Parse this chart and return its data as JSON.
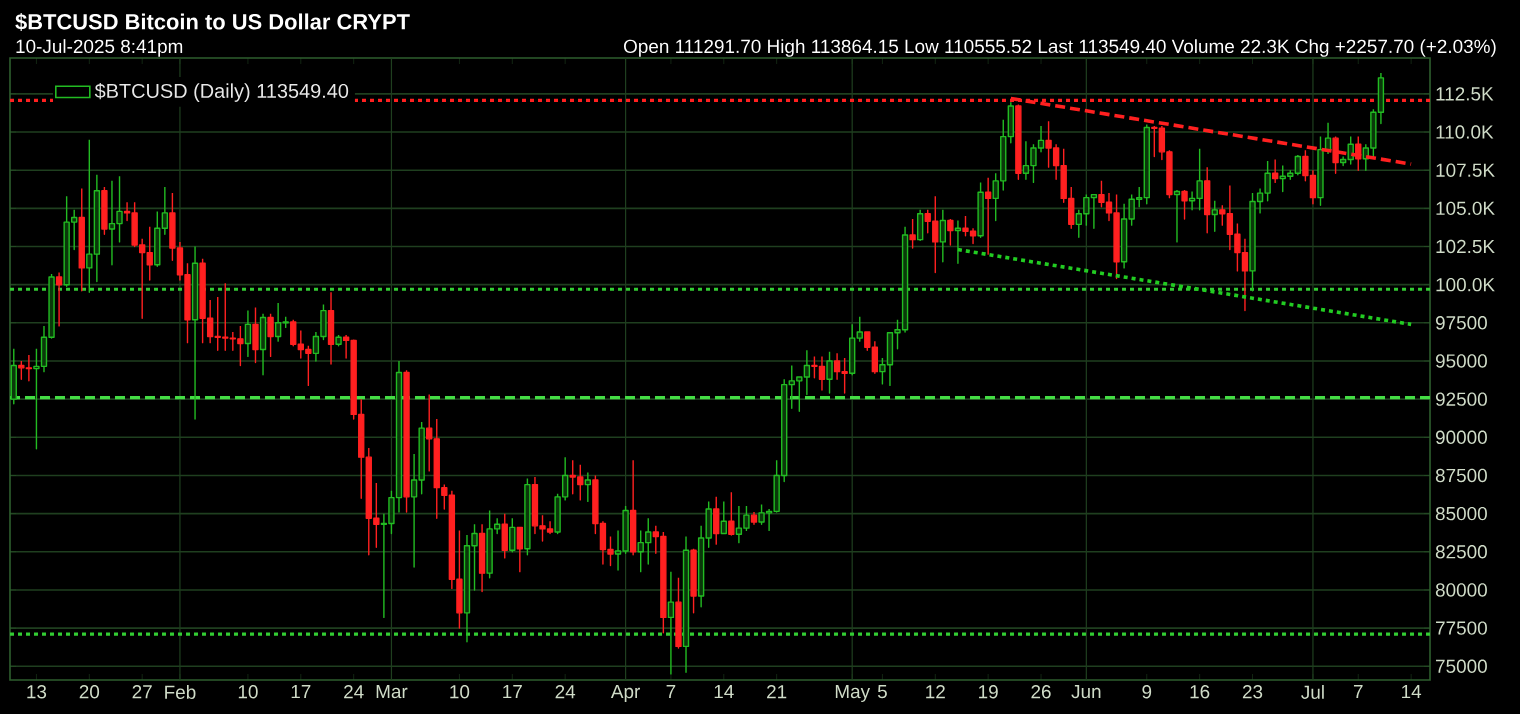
{
  "chart_data": {
    "type": "candlestick",
    "title": "$BTCUSD Bitcoin to US Dollar CRYPT",
    "subtitle": "10-Jul-2025 8:41pm",
    "annotations": [
      "Open 111291.70 High 113864.15 Low 110555.52 Last 113549.40 Volume 22.3K Chg +2257.70 (+2.03%)"
    ],
    "xlim": [
      "2025-01-09T12:00",
      "2025-07-16T12:00"
    ],
    "xticks": [
      {
        "value": "2025-01-13",
        "label": "13"
      },
      {
        "value": "2025-01-20",
        "label": "20"
      },
      {
        "value": "2025-01-27",
        "label": "27"
      },
      {
        "value": "2025-02-01",
        "label": "Feb"
      },
      {
        "value": "2025-02-10",
        "label": "10"
      },
      {
        "value": "2025-02-17",
        "label": "17"
      },
      {
        "value": "2025-02-24",
        "label": "24"
      },
      {
        "value": "2025-03-01",
        "label": "Mar"
      },
      {
        "value": "2025-03-10",
        "label": "10"
      },
      {
        "value": "2025-03-17",
        "label": "17"
      },
      {
        "value": "2025-03-24",
        "label": "24"
      },
      {
        "value": "2025-04-01",
        "label": "Apr"
      },
      {
        "value": "2025-04-07",
        "label": "7"
      },
      {
        "value": "2025-04-14",
        "label": "14"
      },
      {
        "value": "2025-04-21",
        "label": "21"
      },
      {
        "value": "2025-05-01",
        "label": "May"
      },
      {
        "value": "2025-05-05",
        "label": "5"
      },
      {
        "value": "2025-05-12",
        "label": "12"
      },
      {
        "value": "2025-05-19",
        "label": "19"
      },
      {
        "value": "2025-05-26",
        "label": "26"
      },
      {
        "value": "2025-06-01",
        "label": "Jun"
      },
      {
        "value": "2025-06-09",
        "label": "9"
      },
      {
        "value": "2025-06-16",
        "label": "16"
      },
      {
        "value": "2025-06-23",
        "label": "23"
      },
      {
        "value": "2025-07-01",
        "label": "Jul"
      },
      {
        "value": "2025-07-07",
        "label": "7"
      },
      {
        "value": "2025-07-14",
        "label": "14"
      }
    ],
    "ylim": [
      74100,
      114850
    ],
    "yticks": [
      75000,
      77500,
      80000,
      82500,
      85000,
      87500,
      90000,
      92500,
      95000,
      97500,
      {
        "value": 100000,
        "label": "100.0K"
      },
      {
        "value": 102500,
        "label": "102.5K"
      },
      {
        "value": 105000,
        "label": "105.0K"
      },
      {
        "value": 107500,
        "label": "107.5K"
      },
      {
        "value": 110000,
        "label": "110.0K"
      },
      {
        "value": 112500,
        "label": "112.5K"
      }
    ],
    "grid": "y",
    "legend": "top left",
    "ref_lines": [
      {
        "axis": "x",
        "value": "2025-02-01",
        "color": "#1f3f1f"
      },
      {
        "axis": "x",
        "value": "2025-03-01",
        "color": "#1f3f1f"
      },
      {
        "axis": "x",
        "value": "2025-04-01",
        "color": "#1f3f1f"
      },
      {
        "axis": "x",
        "value": "2025-05-01",
        "color": "#1f3f1f"
      },
      {
        "axis": "x",
        "value": "2025-06-01",
        "color": "#1f3f1f"
      },
      {
        "axis": "x",
        "value": "2025-07-01",
        "color": "#1f3f1f"
      },
      {
        "axis": "y",
        "value": 112070,
        "color": "#ff2020",
        "line_style": "dotted"
      },
      {
        "axis": "y",
        "value": 99700,
        "color": "#33cc33",
        "line_style": "dotted"
      },
      {
        "axis": "y",
        "value": 92600,
        "color": "#44dd44",
        "line_style": "dashed"
      },
      {
        "axis": "y",
        "value": 77100,
        "color": "#33cc33",
        "line_style": "dotted"
      }
    ],
    "series": [
      {
        "name": "$BTCUSD (Daily) 113549.40",
        "x": [
          "2025-01-10",
          "2025-01-11",
          "2025-01-12",
          "2025-01-13",
          "2025-01-14",
          "2025-01-15",
          "2025-01-16",
          "2025-01-17",
          "2025-01-18",
          "2025-01-19",
          "2025-01-20",
          "2025-01-21",
          "2025-01-22",
          "2025-01-23",
          "2025-01-24",
          "2025-01-25",
          "2025-01-26",
          "2025-01-27",
          "2025-01-28",
          "2025-01-29",
          "2025-01-30",
          "2025-01-31",
          "2025-02-01",
          "2025-02-02",
          "2025-02-03",
          "2025-02-04",
          "2025-02-05",
          "2025-02-06",
          "2025-02-07",
          "2025-02-08",
          "2025-02-09",
          "2025-02-10",
          "2025-02-11",
          "2025-02-12",
          "2025-02-13",
          "2025-02-14",
          "2025-02-15",
          "2025-02-16",
          "2025-02-17",
          "2025-02-18",
          "2025-02-19",
          "2025-02-20",
          "2025-02-21",
          "2025-02-22",
          "2025-02-23",
          "2025-02-24",
          "2025-02-25",
          "2025-02-26",
          "2025-02-27",
          "2025-02-28",
          "2025-03-01",
          "2025-03-02",
          "2025-03-03",
          "2025-03-04",
          "2025-03-05",
          "2025-03-06",
          "2025-03-07",
          "2025-03-08",
          "2025-03-09",
          "2025-03-10",
          "2025-03-11",
          "2025-03-12",
          "2025-03-13",
          "2025-03-14",
          "2025-03-15",
          "2025-03-16",
          "2025-03-17",
          "2025-03-18",
          "2025-03-19",
          "2025-03-20",
          "2025-03-21",
          "2025-03-22",
          "2025-03-23",
          "2025-03-24",
          "2025-03-25",
          "2025-03-26",
          "2025-03-27",
          "2025-03-28",
          "2025-03-29",
          "2025-03-30",
          "2025-03-31",
          "2025-04-01",
          "2025-04-02",
          "2025-04-03",
          "2025-04-04",
          "2025-04-05",
          "2025-04-06",
          "2025-04-07",
          "2025-04-08",
          "2025-04-09",
          "2025-04-10",
          "2025-04-11",
          "2025-04-12",
          "2025-04-13",
          "2025-04-14",
          "2025-04-15",
          "2025-04-16",
          "2025-04-17",
          "2025-04-18",
          "2025-04-19",
          "2025-04-20",
          "2025-04-21",
          "2025-04-22",
          "2025-04-23",
          "2025-04-24",
          "2025-04-25",
          "2025-04-26",
          "2025-04-27",
          "2025-04-28",
          "2025-04-29",
          "2025-04-30",
          "2025-05-01",
          "2025-05-02",
          "2025-05-03",
          "2025-05-04",
          "2025-05-05",
          "2025-05-06",
          "2025-05-07",
          "2025-05-08",
          "2025-05-09",
          "2025-05-10",
          "2025-05-11",
          "2025-05-12",
          "2025-05-13",
          "2025-05-14",
          "2025-05-15",
          "2025-05-16",
          "2025-05-17",
          "2025-05-18",
          "2025-05-19",
          "2025-05-20",
          "2025-05-21",
          "2025-05-22",
          "2025-05-23",
          "2025-05-24",
          "2025-05-25",
          "2025-05-26",
          "2025-05-27",
          "2025-05-28",
          "2025-05-29",
          "2025-05-30",
          "2025-05-31",
          "2025-06-01",
          "2025-06-02",
          "2025-06-03",
          "2025-06-04",
          "2025-06-05",
          "2025-06-06",
          "2025-06-07",
          "2025-06-08",
          "2025-06-09",
          "2025-06-10",
          "2025-06-11",
          "2025-06-12",
          "2025-06-13",
          "2025-06-14",
          "2025-06-15",
          "2025-06-16",
          "2025-06-17",
          "2025-06-18",
          "2025-06-19",
          "2025-06-20",
          "2025-06-21",
          "2025-06-22",
          "2025-06-23",
          "2025-06-24",
          "2025-06-25",
          "2025-06-26",
          "2025-06-27",
          "2025-06-28",
          "2025-06-29",
          "2025-06-30",
          "2025-07-01",
          "2025-07-02",
          "2025-07-03",
          "2025-07-04",
          "2025-07-05",
          "2025-07-06",
          "2025-07-07",
          "2025-07-08",
          "2025-07-09",
          "2025-07-10"
        ],
        "ohlc": [
          [
            92500,
            95800,
            92200,
            94700
          ],
          [
            94700,
            95000,
            93800,
            94550
          ],
          [
            94550,
            95400,
            93700,
            94500
          ],
          [
            94500,
            95800,
            89250,
            94650
          ],
          [
            94650,
            97300,
            94300,
            96550
          ],
          [
            96550,
            100700,
            96500,
            100500
          ],
          [
            100500,
            100800,
            97300,
            99990
          ],
          [
            99990,
            105800,
            99900,
            104100
          ],
          [
            104100,
            104900,
            102300,
            104400
          ],
          [
            104400,
            106300,
            99600,
            101100
          ],
          [
            101100,
            109500,
            99500,
            102000
          ],
          [
            102000,
            107200,
            100200,
            106150
          ],
          [
            106150,
            106400,
            103300,
            103650
          ],
          [
            103650,
            106800,
            101300,
            104000
          ],
          [
            104000,
            107100,
            102800,
            104800
          ],
          [
            104800,
            105400,
            104200,
            104700
          ],
          [
            104700,
            105400,
            102500,
            102600
          ],
          [
            102600,
            103000,
            97800,
            102100
          ],
          [
            102100,
            103800,
            100300,
            101300
          ],
          [
            101300,
            104800,
            101200,
            103700
          ],
          [
            103700,
            106400,
            103300,
            104700
          ],
          [
            104700,
            106000,
            101600,
            102400
          ],
          [
            102400,
            102800,
            100300,
            100650
          ],
          [
            100650,
            101400,
            96200,
            97700
          ],
          [
            97700,
            102500,
            91200,
            101400
          ],
          [
            101400,
            101700,
            96200,
            97800
          ],
          [
            97800,
            99000,
            96200,
            96600
          ],
          [
            96600,
            99200,
            95700,
            96550
          ],
          [
            96550,
            100100,
            95700,
            96500
          ],
          [
            96500,
            96900,
            95700,
            96450
          ],
          [
            96450,
            97300,
            94700,
            96150
          ],
          [
            96150,
            98300,
            95300,
            97400
          ],
          [
            97400,
            98500,
            94900,
            95750
          ],
          [
            95750,
            98100,
            94100,
            97850
          ],
          [
            97850,
            98100,
            95300,
            96600
          ],
          [
            96600,
            98800,
            96300,
            97500
          ],
          [
            97500,
            97900,
            97200,
            97550
          ],
          [
            97550,
            97700,
            96000,
            96100
          ],
          [
            96100,
            97000,
            95200,
            95750
          ],
          [
            95750,
            96000,
            93400,
            95500
          ],
          [
            95500,
            96900,
            95000,
            96600
          ],
          [
            96600,
            98700,
            96400,
            98300
          ],
          [
            98300,
            99500,
            94800,
            96100
          ],
          [
            96100,
            96700,
            96000,
            96550
          ],
          [
            96550,
            96700,
            95200,
            96350
          ],
          [
            96350,
            96400,
            91200,
            91500
          ],
          [
            91500,
            92500,
            86000,
            88700
          ],
          [
            88700,
            89300,
            82300,
            84700
          ],
          [
            84700,
            87000,
            82800,
            84300
          ],
          [
            84300,
            85000,
            78200,
            84350
          ],
          [
            84350,
            86500,
            83700,
            86050
          ],
          [
            86050,
            95000,
            85100,
            94250
          ],
          [
            94250,
            94400,
            85100,
            86100
          ],
          [
            86100,
            88900,
            81500,
            87200
          ],
          [
            87200,
            91000,
            86300,
            90600
          ],
          [
            90600,
            92800,
            87800,
            89900
          ],
          [
            89900,
            91200,
            84700,
            86700
          ],
          [
            86700,
            86900,
            85300,
            86200
          ],
          [
            86200,
            86500,
            80100,
            80700
          ],
          [
            80700,
            83900,
            77500,
            78500
          ],
          [
            78500,
            83600,
            76600,
            82900
          ],
          [
            82900,
            84300,
            80000,
            83700
          ],
          [
            83700,
            84300,
            79900,
            81100
          ],
          [
            81100,
            85200,
            80800,
            84000
          ],
          [
            84000,
            84700,
            83700,
            84300
          ],
          [
            84300,
            85000,
            82100,
            82600
          ],
          [
            82600,
            84700,
            82500,
            84100
          ],
          [
            84100,
            84100,
            81200,
            82700
          ],
          [
            82700,
            87300,
            82300,
            86900
          ],
          [
            86900,
            87400,
            83700,
            84200
          ],
          [
            84200,
            84900,
            83200,
            84000
          ],
          [
            84000,
            84500,
            83700,
            83800
          ],
          [
            83800,
            86300,
            83700,
            86100
          ],
          [
            86100,
            88700,
            85900,
            87500
          ],
          [
            87500,
            88500,
            86300,
            87400
          ],
          [
            87400,
            88200,
            85900,
            86900
          ],
          [
            86900,
            87700,
            85800,
            87200
          ],
          [
            87200,
            87500,
            83700,
            84350
          ],
          [
            84350,
            84500,
            81700,
            82650
          ],
          [
            82650,
            83500,
            81600,
            82350
          ],
          [
            82350,
            83900,
            81300,
            82550
          ],
          [
            82550,
            85500,
            82400,
            85200
          ],
          [
            85200,
            88500,
            82300,
            82500
          ],
          [
            82500,
            83900,
            81200,
            83100
          ],
          [
            83100,
            84700,
            81700,
            83800
          ],
          [
            83800,
            84200,
            82400,
            83500
          ],
          [
            83500,
            83800,
            77200,
            78200
          ],
          [
            78200,
            81200,
            74500,
            79200
          ],
          [
            79200,
            80800,
            76200,
            76300
          ],
          [
            76300,
            83500,
            74600,
            82600
          ],
          [
            82600,
            82700,
            78500,
            79600
          ],
          [
            79600,
            84200,
            78900,
            83400
          ],
          [
            83400,
            85800,
            82800,
            85300
          ],
          [
            85300,
            86100,
            83000,
            83700
          ],
          [
            83700,
            85800,
            83700,
            84500
          ],
          [
            84500,
            86400,
            83600,
            83650
          ],
          [
            83650,
            85500,
            83100,
            84050
          ],
          [
            84050,
            85500,
            83900,
            84900
          ],
          [
            84900,
            85100,
            84300,
            84450
          ],
          [
            84450,
            85600,
            84300,
            85050
          ],
          [
            85050,
            85300,
            83900,
            85150
          ],
          [
            85150,
            88500,
            85100,
            87500
          ],
          [
            87500,
            93800,
            87100,
            93450
          ],
          [
            93450,
            94700,
            91900,
            93700
          ],
          [
            93700,
            94000,
            91700,
            93950
          ],
          [
            93950,
            95700,
            92800,
            94700
          ],
          [
            94700,
            95300,
            93900,
            94650
          ],
          [
            94650,
            95300,
            93100,
            93800
          ],
          [
            93800,
            95600,
            92900,
            95000
          ],
          [
            95000,
            95500,
            93800,
            94300
          ],
          [
            94300,
            95200,
            92900,
            94200
          ],
          [
            94200,
            97400,
            94100,
            96500
          ],
          [
            96500,
            97900,
            96300,
            96900
          ],
          [
            96900,
            96900,
            95700,
            95900
          ],
          [
            95900,
            96300,
            94200,
            94300
          ],
          [
            94300,
            95200,
            93500,
            94750
          ],
          [
            94750,
            96900,
            93400,
            96850
          ],
          [
            96850,
            97700,
            95800,
            97050
          ],
          [
            97050,
            103800,
            96900,
            103250
          ],
          [
            103250,
            104300,
            102400,
            102950
          ],
          [
            102950,
            104900,
            102900,
            104650
          ],
          [
            104650,
            104900,
            103400,
            104150
          ],
          [
            104150,
            105800,
            100800,
            102800
          ],
          [
            102800,
            104900,
            101500,
            104200
          ],
          [
            104200,
            104300,
            102600,
            103550
          ],
          [
            103550,
            104200,
            101400,
            103700
          ],
          [
            103700,
            104500,
            103200,
            103500
          ],
          [
            103500,
            103700,
            102700,
            103200
          ],
          [
            103200,
            106700,
            103100,
            106050
          ],
          [
            106050,
            107000,
            102000,
            105650
          ],
          [
            105650,
            107300,
            104200,
            106800
          ],
          [
            106800,
            110800,
            106200,
            109700
          ],
          [
            109700,
            111950,
            109300,
            111700
          ],
          [
            111700,
            111800,
            106900,
            107300
          ],
          [
            107300,
            109400,
            106900,
            107800
          ],
          [
            107800,
            109200,
            106700,
            108950
          ],
          [
            108950,
            110400,
            108700,
            109450
          ],
          [
            109450,
            110700,
            107700,
            108950
          ],
          [
            108950,
            109200,
            106900,
            107800
          ],
          [
            107800,
            108900,
            105400,
            105650
          ],
          [
            105650,
            106400,
            103700,
            103950
          ],
          [
            103950,
            104900,
            103100,
            104650
          ],
          [
            104650,
            105900,
            103900,
            105700
          ],
          [
            105700,
            105900,
            103700,
            105900
          ],
          [
            105900,
            106800,
            105100,
            105400
          ],
          [
            105400,
            106000,
            104200,
            104700
          ],
          [
            104700,
            105900,
            100400,
            101500
          ],
          [
            101500,
            105300,
            101100,
            104300
          ],
          [
            104300,
            105900,
            103900,
            105600
          ],
          [
            105600,
            106400,
            105100,
            105700
          ],
          [
            105700,
            110500,
            105300,
            110300
          ],
          [
            110300,
            110400,
            108400,
            110250
          ],
          [
            110250,
            110400,
            108200,
            108700
          ],
          [
            108700,
            108800,
            105700,
            105900
          ],
          [
            105900,
            106200,
            102800,
            106100
          ],
          [
            106100,
            106200,
            104300,
            105500
          ],
          [
            105500,
            106100,
            104900,
            105650
          ],
          [
            105650,
            108900,
            104900,
            106800
          ],
          [
            106800,
            107700,
            103400,
            104600
          ],
          [
            104600,
            105500,
            103500,
            104900
          ],
          [
            104900,
            105200,
            103900,
            104650
          ],
          [
            104650,
            106500,
            102300,
            103300
          ],
          [
            103300,
            104000,
            100900,
            102100
          ],
          [
            102100,
            103000,
            98300,
            100900
          ],
          [
            100900,
            106000,
            99600,
            105450
          ],
          [
            105450,
            106300,
            104700,
            106000
          ],
          [
            106000,
            108100,
            105500,
            107300
          ],
          [
            107300,
            108200,
            106700,
            106950
          ],
          [
            106950,
            107800,
            106100,
            107100
          ],
          [
            107100,
            107500,
            106900,
            107300
          ],
          [
            107300,
            108500,
            107200,
            108400
          ],
          [
            108400,
            108800,
            106800,
            107150
          ],
          [
            107150,
            107500,
            105300,
            105700
          ],
          [
            105700,
            109700,
            105200,
            108850
          ],
          [
            108850,
            110600,
            108600,
            109600
          ],
          [
            109600,
            109700,
            107300,
            108000
          ],
          [
            108000,
            108400,
            107800,
            108200
          ],
          [
            108200,
            109700,
            107900,
            109200
          ],
          [
            109200,
            109700,
            107500,
            108250
          ],
          [
            108250,
            109200,
            107500,
            108950
          ],
          [
            108950,
            111500,
            108400,
            111291.7
          ],
          [
            111291.7,
            113864.15,
            110555.52,
            113549.4
          ]
        ],
        "colors": [
          "#22bb22",
          "#ff2020",
          "#ff2020",
          "#22bb22",
          "#22bb22",
          "#22bb22",
          "#ff2020",
          "#22bb22",
          "#22bb22",
          "#ff2020",
          "#22bb22",
          "#22bb22",
          "#ff2020",
          "#22bb22",
          "#22bb22",
          "#ff2020",
          "#ff2020",
          "#ff2020",
          "#ff2020",
          "#22bb22",
          "#22bb22",
          "#ff2020",
          "#ff2020",
          "#ff2020",
          "#22bb22",
          "#ff2020",
          "#ff2020",
          "#ff2020",
          "#ff2020",
          "#ff2020",
          "#ff2020",
          "#22bb22",
          "#ff2020",
          "#22bb22",
          "#ff2020",
          "#22bb22",
          "#22bb22",
          "#ff2020",
          "#ff2020",
          "#ff2020",
          "#22bb22",
          "#22bb22",
          "#ff2020",
          "#22bb22",
          "#ff2020",
          "#ff2020",
          "#ff2020",
          "#ff2020",
          "#ff2020",
          "#22bb22",
          "#22bb22",
          "#22bb22",
          "#ff2020",
          "#22bb22",
          "#22bb22",
          "#ff2020",
          "#ff2020",
          "#ff2020",
          "#ff2020",
          "#ff2020",
          "#22bb22",
          "#22bb22",
          "#ff2020",
          "#22bb22",
          "#22bb22",
          "#ff2020",
          "#22bb22",
          "#ff2020",
          "#22bb22",
          "#ff2020",
          "#ff2020",
          "#ff2020",
          "#22bb22",
          "#22bb22",
          "#ff2020",
          "#ff2020",
          "#22bb22",
          "#ff2020",
          "#ff2020",
          "#ff2020",
          "#22bb22",
          "#22bb22",
          "#ff2020",
          "#22bb22",
          "#22bb22",
          "#ff2020",
          "#ff2020",
          "#22bb22",
          "#ff2020",
          "#22bb22",
          "#ff2020",
          "#22bb22",
          "#22bb22",
          "#ff2020",
          "#22bb22",
          "#ff2020",
          "#22bb22",
          "#22bb22",
          "#ff2020",
          "#22bb22",
          "#22bb22",
          "#22bb22",
          "#22bb22",
          "#22bb22",
          "#22bb22",
          "#22bb22",
          "#ff2020",
          "#ff2020",
          "#22bb22",
          "#ff2020",
          "#ff2020",
          "#22bb22",
          "#22bb22",
          "#ff2020",
          "#ff2020",
          "#22bb22",
          "#22bb22",
          "#22bb22",
          "#22bb22",
          "#ff2020",
          "#22bb22",
          "#ff2020",
          "#ff2020",
          "#22bb22",
          "#ff2020",
          "#22bb22",
          "#ff2020",
          "#ff2020",
          "#22bb22",
          "#ff2020",
          "#22bb22",
          "#22bb22",
          "#22bb22",
          "#ff2020",
          "#22bb22",
          "#22bb22",
          "#22bb22",
          "#ff2020",
          "#ff2020",
          "#ff2020",
          "#ff2020",
          "#22bb22",
          "#22bb22",
          "#22bb22",
          "#ff2020",
          "#ff2020",
          "#ff2020",
          "#22bb22",
          "#22bb22",
          "#22bb22",
          "#22bb22",
          "#ff2020",
          "#ff2020",
          "#ff2020",
          "#22bb22",
          "#ff2020",
          "#22bb22",
          "#22bb22",
          "#ff2020",
          "#22bb22",
          "#ff2020",
          "#ff2020",
          "#ff2020",
          "#ff2020",
          "#22bb22",
          "#22bb22",
          "#22bb22",
          "#ff2020",
          "#22bb22",
          "#22bb22",
          "#22bb22",
          "#ff2020",
          "#ff2020",
          "#22bb22",
          "#22bb22",
          "#ff2020",
          "#22bb22",
          "#22bb22",
          "#ff2020",
          "#22bb22",
          "#22bb22",
          "#22bb22"
        ]
      },
      {
        "type": "line",
        "color": "#ff2020",
        "line_style": "dashed",
        "x": [
          "2025-05-22",
          "2025-07-14"
        ],
        "values": [
          112200,
          107900
        ]
      },
      {
        "type": "line",
        "color": "#22cc22",
        "line_style": "dotted",
        "x": [
          "2025-05-15",
          "2025-07-14"
        ],
        "values": [
          102300,
          97400
        ]
      }
    ]
  }
}
